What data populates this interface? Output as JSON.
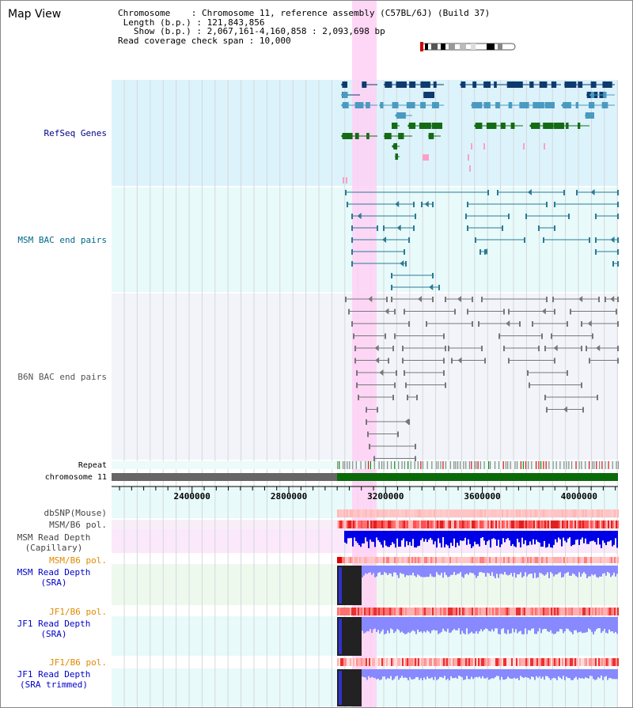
{
  "page": {
    "title": "Map View",
    "info": {
      "chromosome_key": "Chromosome",
      "chromosome_value": "Chromosome 11, reference assembly (C57BL/6J) (Build 37)",
      "length_key": "Length (b.p.)",
      "length_value": "121,843,856",
      "show_key": "Show (b.p.)",
      "show_value": "2,067,161-4,160,858 : 2,093,698 bp",
      "span_key": "Read coverage check span",
      "span_value": "10,000"
    }
  },
  "tracks": {
    "refseq": "RefSeq Genes",
    "msm_bac": "MSM BAC end pairs",
    "b6n_bac": "B6N BAC end pairs",
    "repeat": "Repeat",
    "chromosome": "chromosome 11",
    "dbsnp": "dbSNP(Mouse)",
    "msm_b6_pol_1": "MSM/B6 pol.",
    "msm_depth_cap_1": "MSM Read Depth",
    "msm_depth_cap_2": "(Capillary)",
    "msm_b6_pol_2": "MSM/B6 pol.",
    "msm_depth_sra_1": "MSM Read Depth",
    "msm_depth_sra_2": "(SRA)",
    "jf1_b6_pol_1": "JF1/B6 pol.",
    "jf1_depth_sra_1": "JF1 Read Depth",
    "jf1_depth_sra_2": "(SRA)",
    "jf1_b6_pol_2": "JF1/B6 pol.",
    "jf1_depth_trim_1": "JF1 Read Depth",
    "jf1_depth_trim_2": "(SRA trimmed)"
  },
  "axis": {
    "start": 2067161,
    "end": 4160858,
    "ticks": [
      "2400000",
      "2800000",
      "3200000",
      "3600000",
      "4000000"
    ]
  },
  "highlight": {
    "start": 3050000,
    "end": 3145000,
    "color": "#ffd0f4"
  },
  "colors": {
    "refseq_bg": "#dcf3fb",
    "bac_bg": "#e8fafa",
    "b6n_bg": "#f2f4fa",
    "gene_navy": "#0e3a6e",
    "gene_blue": "#4a9ac0",
    "gene_green": "#146b14",
    "gene_pink": "#ff9fc8",
    "msm_line": "#2a7a95",
    "b6n_line": "#777777",
    "chrom_gray": "#666666",
    "chrom_green": "#0a6a0a",
    "depth_blue": "#0000e6",
    "depth_light": "#8888ff",
    "pol_red": "#ff4040",
    "snp_pink": "#ffb0b0"
  }
}
